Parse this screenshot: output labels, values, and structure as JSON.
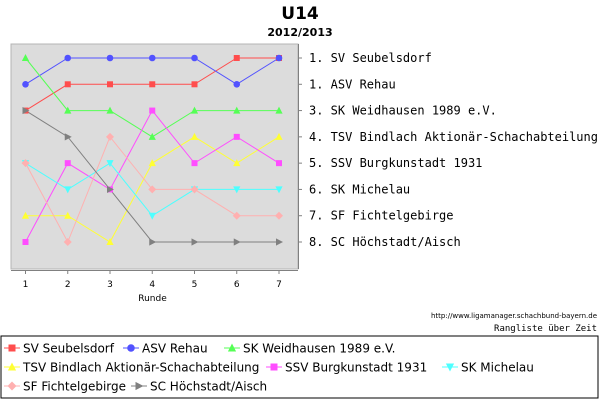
{
  "chart_data": {
    "type": "line",
    "title": "U14",
    "subtitle": "2012/2013",
    "xlabel": "Runde",
    "ylabel": "",
    "x": [
      1,
      2,
      3,
      4,
      5,
      6,
      7
    ],
    "ylim": [
      1,
      8
    ],
    "y_inverted": true,
    "grid": false,
    "legend_position": "bottom",
    "series": [
      {
        "name": "SV Seubelsdorf",
        "color": "#ff4d4d",
        "marker": "square",
        "values": [
          3,
          2,
          2,
          2,
          2,
          1,
          1
        ]
      },
      {
        "name": "ASV Rehau",
        "color": "#5252ff",
        "marker": "circle",
        "values": [
          2,
          1,
          1,
          1,
          1,
          2,
          1
        ]
      },
      {
        "name": "SK Weidhausen 1989 e.V.",
        "color": "#55ff55",
        "marker": "triangle-up",
        "values": [
          1,
          3,
          3,
          4,
          3,
          3,
          3
        ]
      },
      {
        "name": "TSV Bindlach Aktionär-Schachabteilung",
        "color": "#ffff33",
        "marker": "triangle-up",
        "values": [
          7,
          7,
          8,
          5,
          4,
          5,
          4
        ]
      },
      {
        "name": "SSV Burgkunstadt 1931",
        "color": "#ff4dff",
        "marker": "square",
        "values": [
          8,
          5,
          6,
          3,
          5,
          4,
          5
        ]
      },
      {
        "name": "SK Michelau",
        "color": "#4dffff",
        "marker": "triangle-down",
        "values": [
          5,
          6,
          5,
          7,
          6,
          6,
          6
        ]
      },
      {
        "name": "SF Fichtelgebirge",
        "color": "#ffb0b0",
        "marker": "diamond",
        "values": [
          5,
          8,
          4,
          6,
          6,
          7,
          7
        ]
      },
      {
        "name": "SC Höchstadt/Aisch",
        "color": "#808080",
        "marker": "triangle-right",
        "values": [
          3,
          4,
          6,
          8,
          8,
          8,
          8
        ]
      }
    ],
    "final_ranking": [
      {
        "rank": "1.",
        "team": "SV Seubelsdorf"
      },
      {
        "rank": "1.",
        "team": "ASV Rehau"
      },
      {
        "rank": "3.",
        "team": "SK Weidhausen 1989 e.V."
      },
      {
        "rank": "4.",
        "team": "TSV Bindlach Aktionär-Schachabteilung"
      },
      {
        "rank": "5.",
        "team": "SSV Burgkunstadt 1931"
      },
      {
        "rank": "6.",
        "team": "SK Michelau"
      },
      {
        "rank": "7.",
        "team": "SF Fichtelgebirge"
      },
      {
        "rank": "8.",
        "team": "SC Höchstadt/Aisch"
      }
    ],
    "source": "http://www.ligamanager.schachbund-bayern.de",
    "caption": "Rangliste über Zeit"
  }
}
